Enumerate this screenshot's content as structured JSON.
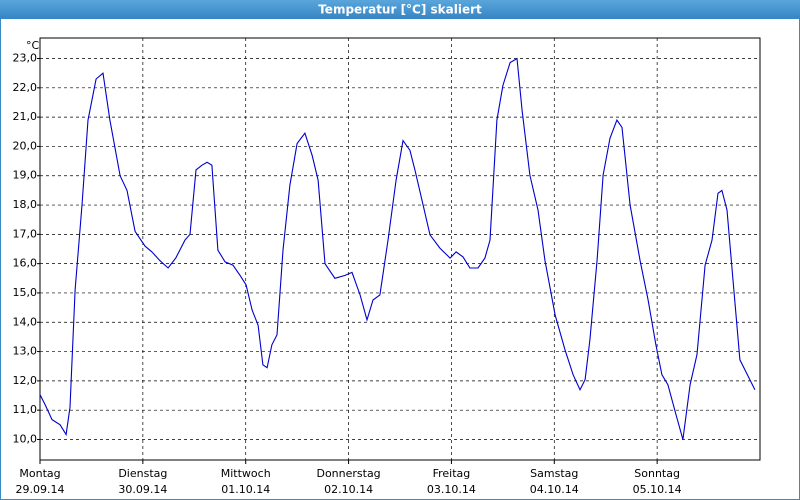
{
  "chart_data": {
    "type": "line",
    "title": "Temperatur [°C] skaliert",
    "y_label": "°C",
    "color": "#0000cc",
    "grid": true,
    "xlim": [
      0,
      168
    ],
    "ylim": [
      9.3,
      23.7
    ],
    "yticks": [
      {
        "value": 10,
        "label": "10,0"
      },
      {
        "value": 11,
        "label": "11,0"
      },
      {
        "value": 12,
        "label": "12,0"
      },
      {
        "value": 13,
        "label": "13,0"
      },
      {
        "value": 14,
        "label": "14,0"
      },
      {
        "value": 15,
        "label": "15,0"
      },
      {
        "value": 16,
        "label": "16,0"
      },
      {
        "value": 17,
        "label": "17,0"
      },
      {
        "value": 18,
        "label": "18,0"
      },
      {
        "value": 19,
        "label": "19,0"
      },
      {
        "value": 20,
        "label": "20,0"
      },
      {
        "value": 21,
        "label": "21,0"
      },
      {
        "value": 22,
        "label": "22,0"
      },
      {
        "value": 23,
        "label": "23,0"
      }
    ],
    "xticks": [
      {
        "value": 0,
        "label": [
          "Montag",
          "29.09.14"
        ]
      },
      {
        "value": 24,
        "label": [
          "Dienstag",
          "30.09.14"
        ]
      },
      {
        "value": 48,
        "label": [
          "Mittwoch",
          "01.10.14"
        ]
      },
      {
        "value": 72,
        "label": [
          "Donnerstag",
          "02.10.14"
        ]
      },
      {
        "value": 96,
        "label": [
          "Freitag",
          "03.10.14"
        ]
      },
      {
        "value": 120,
        "label": [
          "Samstag",
          "04.10.14"
        ]
      },
      {
        "value": 144,
        "label": [
          "Sonntag",
          "05.10.14"
        ]
      }
    ],
    "x": [
      0,
      1.2,
      2.8,
      4.7,
      6.1,
      7,
      8.2,
      9.8,
      11.2,
      13.1,
      14.7,
      16.3,
      18.7,
      20.3,
      22.2,
      24.5,
      26.1,
      28,
      29.9,
      31.7,
      33.8,
      35,
      36.4,
      37.8,
      39,
      40.1,
      41.5,
      43.2,
      45,
      46.7,
      48.1,
      49.5,
      50.9,
      52,
      53,
      54.1,
      55.3,
      56.7,
      58.3,
      60,
      61.8,
      63.5,
      64.9,
      66.5,
      68.8,
      71.2,
      72.8,
      74.7,
      76.3,
      77.7,
      79.3,
      81.2,
      83.1,
      84.7,
      86.3,
      87.5,
      89.4,
      91,
      93.3,
      95.7,
      97.1,
      98.7,
      100.3,
      102.2,
      103.8,
      105,
      106.6,
      108,
      109.7,
      111.3,
      112.5,
      114.3,
      116.2,
      117.8,
      120.2,
      122.5,
      124.4,
      126,
      127.2,
      128.3,
      130,
      131.4,
      133,
      134.6,
      135.8,
      137.7,
      140,
      141.9,
      143.7,
      145.1,
      146.5,
      148.4,
      150,
      151.7,
      153.3,
      155.2,
      156.8,
      158.2,
      159.1,
      160.3,
      161.7,
      163.3,
      164.7,
      166.8
    ],
    "values": [
      11.53,
      11.19,
      10.68,
      10.5,
      10.17,
      11.1,
      15.1,
      18.0,
      20.9,
      22.3,
      22.5,
      20.9,
      19.0,
      18.5,
      17.1,
      16.6,
      16.4,
      16.1,
      15.85,
      16.2,
      16.8,
      17.0,
      19.2,
      19.36,
      19.46,
      19.36,
      16.46,
      16.06,
      15.95,
      15.6,
      15.27,
      14.42,
      13.9,
      12.55,
      12.45,
      13.23,
      13.57,
      16.46,
      18.68,
      20.1,
      20.45,
      19.7,
      18.85,
      16.0,
      15.5,
      15.6,
      15.7,
      14.93,
      14.08,
      14.76,
      14.93,
      16.8,
      18.85,
      20.2,
      19.87,
      19.19,
      18.0,
      16.98,
      16.53,
      16.19,
      16.4,
      16.23,
      15.85,
      15.85,
      16.19,
      16.8,
      20.9,
      22.08,
      22.86,
      23.0,
      21.23,
      19.02,
      17.83,
      16.12,
      14.25,
      13.06,
      12.21,
      11.7,
      12.04,
      13.4,
      16.12,
      19.02,
      20.28,
      20.9,
      20.65,
      18.0,
      16.12,
      14.76,
      13.23,
      12.21,
      11.87,
      10.85,
      10.0,
      11.87,
      12.9,
      15.95,
      16.8,
      18.4,
      18.5,
      17.83,
      15.44,
      12.72,
      12.31,
      11.7
    ]
  }
}
